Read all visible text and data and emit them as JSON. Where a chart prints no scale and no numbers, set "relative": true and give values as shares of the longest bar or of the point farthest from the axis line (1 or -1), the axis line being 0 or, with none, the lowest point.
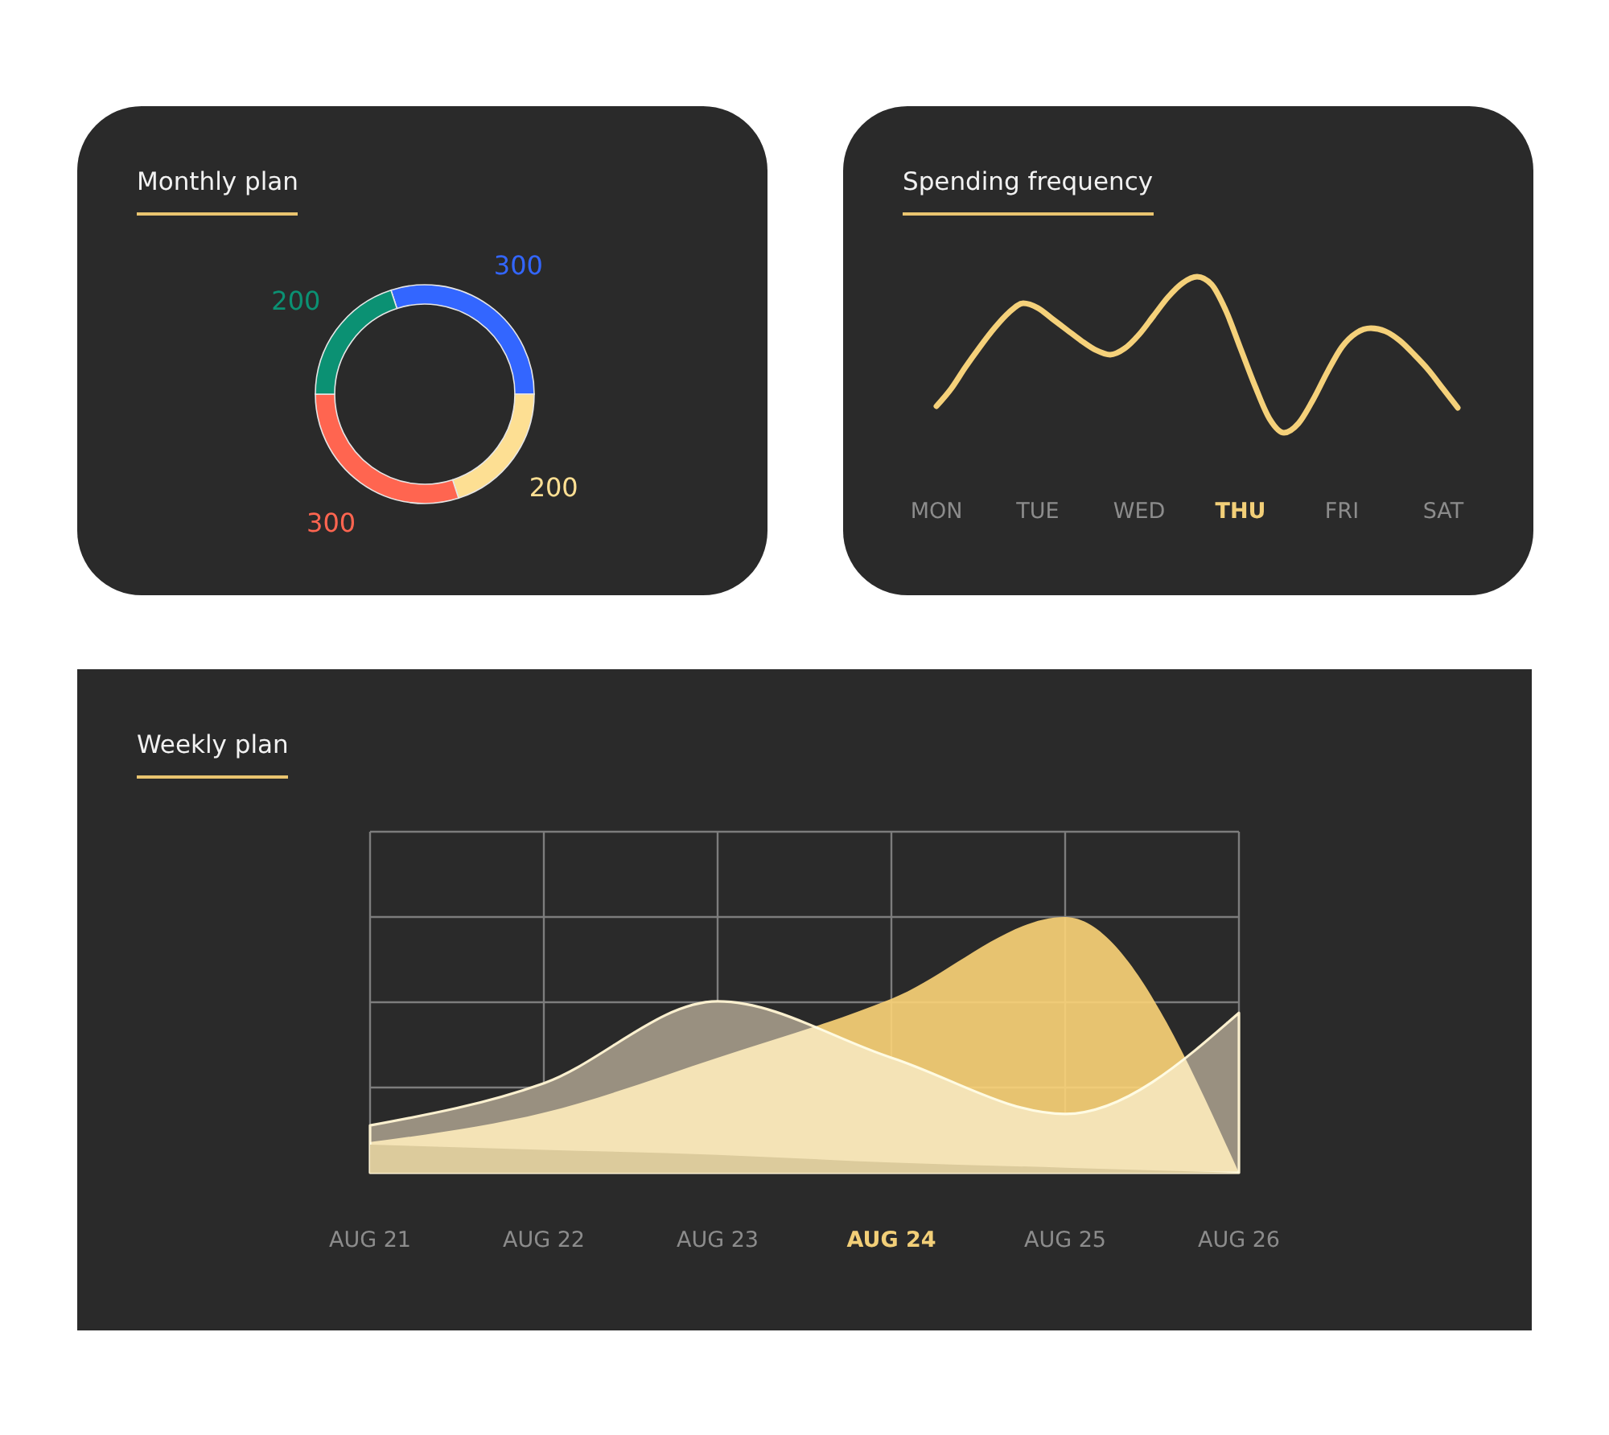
{
  "chart_data": [
    {
      "type": "donut",
      "title": "Monthly plan",
      "categories": [
        null,
        null,
        null,
        null
      ],
      "values": [
        300,
        200,
        300,
        200
      ],
      "colors": [
        "#3366ff",
        "#fddf93",
        "#ff6550",
        "#0b9173"
      ],
      "data_labels": true
    },
    {
      "type": "line",
      "title": "Spending frequency",
      "categories": [
        "MON",
        null,
        null,
        null,
        null,
        null,
        null,
        "TUE",
        null,
        null,
        null,
        null,
        null,
        null,
        "WED",
        null,
        null,
        null,
        null,
        null,
        null,
        "THU",
        null,
        null,
        null,
        null,
        null,
        null,
        "FRI",
        null,
        null,
        null,
        null,
        null,
        null,
        "SAT",
        null
      ],
      "values": [
        0.17,
        0.28,
        0.42,
        0.55,
        0.67,
        0.77,
        0.83,
        0.8,
        0.73,
        0.66,
        0.59,
        0.53,
        0.5,
        0.54,
        0.63,
        0.75,
        0.87,
        0.96,
        1,
        0.95,
        0.78,
        0.54,
        0.3,
        0.09,
        0,
        0.06,
        0.21,
        0.39,
        0.55,
        0.64,
        0.67,
        0.65,
        0.59,
        0.5,
        0.4,
        0.28,
        0.16
      ],
      "color": "#f5d17a",
      "relative": true
    },
    {
      "type": "area",
      "title": "Weekly plan",
      "categories": [
        "AUG 21",
        "AUG 22",
        "AUG 23",
        "AUG 24",
        "AUG 25",
        "AUG 26"
      ],
      "series": [
        {
          "color": "#999080",
          "values": [
            0.185,
            0.35,
            0.67,
            0.45,
            0.23,
            0.625
          ]
        },
        {
          "color": "#fcd478",
          "values": [
            0.12,
            0.235,
            0.45,
            0.68,
            1,
            0
          ]
        },
        {
          "color": "#dccb9c",
          "values": [
            0.11,
            0.09,
            0.07,
            0.04,
            0.02,
            0
          ]
        }
      ],
      "relative": true,
      "grid": true
    }
  ]
}
